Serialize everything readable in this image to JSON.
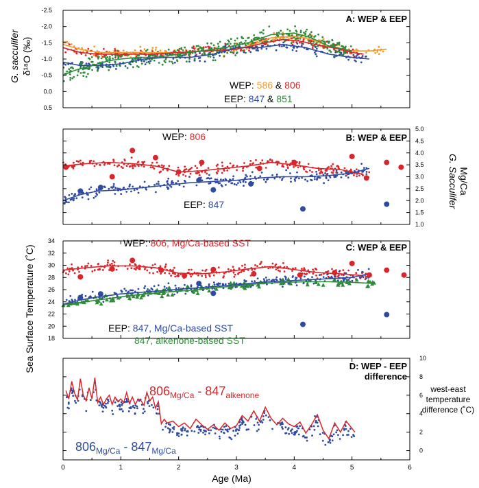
{
  "figure": {
    "shared_ylabel": "Sea Surface Temperature (˚C)",
    "xlabel": "Age (Ma)",
    "x_ticks": [
      "0",
      "1",
      "2",
      "3",
      "4",
      "5",
      "6"
    ]
  },
  "colors": {
    "wep_806": "#d8262b",
    "wep_586": "#f29a2e",
    "eep_847": "#2f4ba0",
    "eep_851": "#2e8b3a",
    "eep_847_alkenone": "#2e8b3a",
    "axis": "#000000"
  },
  "chart_data": [
    {
      "id": "A",
      "type": "scatter",
      "title": "A: WEP & EEP",
      "ylabel_line1": "G. sacculifer",
      "ylabel_line2": "δ¹⁸O (‰)",
      "ylim": [
        0.5,
        -2.5
      ],
      "y_reversed": true,
      "xlim": [
        0,
        6
      ],
      "y_ticks": [
        "-2.5",
        "-2.0",
        "-1.5",
        "-1.0",
        "-0.5",
        "0.0",
        "0.5"
      ],
      "legend": {
        "line1_prefix": "WEP: ",
        "line1_a": "586",
        "line1_amp": " & ",
        "line1_b": "806",
        "line2_prefix": "EEP: ",
        "line2_a": "847",
        "line2_amp": " & ",
        "line2_b": "851"
      },
      "series": [
        {
          "name": "586",
          "color": "#f29a2e",
          "smooth_x": [
            0,
            0.3,
            0.6,
            1.0,
            1.5,
            2.0,
            2.5,
            3.0,
            3.3,
            3.6,
            4.0,
            4.3,
            4.6,
            5.0,
            5.3,
            5.6
          ],
          "smooth_y": [
            -1.45,
            -1.3,
            -1.2,
            -1.2,
            -1.2,
            -1.2,
            -1.25,
            -1.3,
            -1.45,
            -1.65,
            -1.7,
            -1.6,
            -1.4,
            -1.25,
            -1.25,
            -1.3
          ]
        },
        {
          "name": "806",
          "color": "#d8262b",
          "smooth_x": [
            0,
            0.3,
            0.6,
            1.0,
            1.5,
            2.0,
            2.5,
            3.0,
            3.5,
            3.8,
            4.1,
            4.5,
            4.8,
            5.0,
            5.2
          ],
          "smooth_y": [
            -1.35,
            -1.2,
            -1.15,
            -1.15,
            -1.15,
            -1.2,
            -1.25,
            -1.3,
            -1.5,
            -1.6,
            -1.55,
            -1.4,
            -1.3,
            -1.2,
            -1.15
          ]
        },
        {
          "name": "847",
          "color": "#2f4ba0",
          "smooth_x": [
            0,
            0.3,
            0.6,
            1.0,
            1.4,
            1.8,
            2.2,
            2.6,
            3.0,
            3.4,
            3.8,
            4.2,
            4.6,
            5.0,
            5.3
          ],
          "smooth_y": [
            -0.9,
            -0.8,
            -0.8,
            -0.85,
            -1.0,
            -1.05,
            -1.05,
            -1.15,
            -1.35,
            -1.35,
            -1.45,
            -1.35,
            -1.15,
            -1.05,
            -1.0
          ]
        },
        {
          "name": "851",
          "color": "#2e8b3a",
          "smooth_x": [
            0,
            0.2,
            0.5,
            0.8,
            1.0,
            1.3,
            1.6,
            2.0,
            2.4,
            2.8,
            3.2,
            3.6,
            4.0,
            4.3,
            4.6,
            5.0
          ],
          "smooth_y": [
            -0.5,
            -0.65,
            -0.8,
            -0.95,
            -1.0,
            -1.05,
            -1.05,
            -1.15,
            -1.25,
            -1.35,
            -1.5,
            -1.75,
            -1.8,
            -1.65,
            -1.4,
            -1.25
          ]
        }
      ]
    },
    {
      "id": "B",
      "type": "scatter",
      "title": "B: WEP & EEP",
      "ylabel_line1": "G. Sacculifer",
      "ylabel_line2": "Mg/Ca",
      "ylim": [
        1.0,
        5.0
      ],
      "xlim": [
        0,
        6
      ],
      "y_ticks": [
        "5.0",
        "4.5",
        "4.0",
        "3.5",
        "3.0",
        "2.5",
        "2.0",
        "1.5",
        "1.0"
      ],
      "label_wep_prefix": "WEP: ",
      "label_wep_site": "806",
      "label_eep_prefix": "EEP: ",
      "label_eep_site": "847",
      "series": [
        {
          "name": "806",
          "color": "#d8262b",
          "smooth_x": [
            0,
            0.4,
            0.8,
            1.2,
            1.6,
            2.0,
            2.4,
            2.8,
            3.2,
            3.6,
            4.0,
            4.4,
            4.8,
            5.2
          ],
          "smooth_y": [
            3.45,
            3.55,
            3.6,
            3.55,
            3.45,
            3.2,
            3.25,
            3.35,
            3.45,
            3.6,
            3.5,
            3.35,
            3.3,
            3.1
          ],
          "big_x": [
            0.05,
            0.85,
            1.2,
            1.6,
            2.0,
            2.4,
            3.4,
            4.0,
            5.0,
            5.25,
            5.6,
            5.85
          ],
          "big_y": [
            3.4,
            3.0,
            4.1,
            3.8,
            3.2,
            3.6,
            3.35,
            3.6,
            3.85,
            2.95,
            3.6,
            3.4
          ]
        },
        {
          "name": "847",
          "color": "#2f4ba0",
          "smooth_x": [
            0,
            0.3,
            0.6,
            1.0,
            1.4,
            1.8,
            2.2,
            2.6,
            3.0,
            3.4,
            3.8,
            4.2,
            4.6,
            5.0,
            5.3
          ],
          "smooth_y": [
            2.0,
            2.25,
            2.4,
            2.45,
            2.55,
            2.65,
            2.75,
            2.8,
            2.85,
            2.95,
            3.0,
            3.0,
            3.05,
            3.15,
            3.35
          ],
          "big_x": [
            0.3,
            0.65,
            2.35,
            2.6,
            3.25,
            4.15,
            5.6
          ],
          "big_y": [
            2.4,
            2.55,
            2.85,
            2.45,
            2.7,
            1.65,
            1.85
          ]
        }
      ]
    },
    {
      "id": "C",
      "type": "scatter",
      "title": "C: WEP & EEP",
      "ylim": [
        18,
        34
      ],
      "xlim": [
        0,
        6
      ],
      "y_ticks": [
        "34",
        "32",
        "30",
        "28",
        "26",
        "24",
        "22",
        "20",
        "18"
      ],
      "label_wep_prefix": "WEP: ",
      "label_wep_text": "806,  Mg/Ca-based SST",
      "label_eep_prefix": "EEP: ",
      "label_eep_text": "847, Mg/Ca-based SST",
      "label_alk_text": "847, alkenone-based SST",
      "series": [
        {
          "name": "806, Mg/Ca-based SST",
          "color": "#d8262b",
          "smooth_x": [
            0,
            0.4,
            0.8,
            1.2,
            1.6,
            2.0,
            2.4,
            2.8,
            3.2,
            3.6,
            4.0,
            4.4,
            4.8,
            5.2
          ],
          "smooth_y": [
            29.2,
            29.6,
            29.9,
            29.9,
            29.6,
            28.7,
            28.6,
            28.9,
            29.4,
            29.8,
            29.3,
            28.8,
            28.6,
            28.3
          ],
          "big_x": [
            0.3,
            0.85,
            1.2,
            1.7,
            2.1,
            2.6,
            3.3,
            4.1,
            4.7,
            5.0,
            5.3,
            5.6,
            5.9
          ],
          "big_y": [
            28.1,
            29.4,
            30.8,
            29.2,
            28.3,
            29.3,
            28.6,
            28.4,
            28.8,
            30.3,
            28.4,
            29.2,
            28.4
          ]
        },
        {
          "name": "847, Mg/Ca-based SST",
          "color": "#2f4ba0",
          "smooth_x": [
            0,
            0.3,
            0.6,
            1.0,
            1.4,
            1.8,
            2.2,
            2.6,
            3.0,
            3.4,
            3.8,
            4.2,
            4.6,
            5.0,
            5.3
          ],
          "smooth_y": [
            23.6,
            24.3,
            24.8,
            25.3,
            25.6,
            25.9,
            26.2,
            26.5,
            26.8,
            27.2,
            27.4,
            27.6,
            27.8,
            28.0,
            28.6
          ],
          "big_x": [
            0.3,
            0.65,
            2.35,
            2.6,
            4.15,
            5.6
          ],
          "big_y": [
            24.7,
            25.3,
            27.0,
            25.4,
            20.3,
            21.9
          ]
        },
        {
          "name": "847, alkenone-based SST",
          "color": "#2e8b3a",
          "smooth_x": [
            0,
            0.3,
            0.6,
            1.0,
            1.4,
            1.8,
            2.2,
            2.6,
            3.0,
            3.4,
            3.8,
            4.2,
            4.6,
            5.0,
            5.4
          ],
          "smooth_y": [
            23.5,
            23.9,
            24.3,
            24.8,
            25.3,
            25.6,
            25.9,
            26.3,
            26.6,
            27.0,
            27.2,
            27.3,
            27.3,
            27.2,
            27.0
          ]
        }
      ]
    },
    {
      "id": "D",
      "type": "line",
      "title_line1": "D: WEP - EEP",
      "title_line2": "difference",
      "ylabel_line1": "west-east",
      "ylabel_line2": "temperature",
      "ylabel_line3": "difference (˚C)",
      "ylim": [
        -1,
        10
      ],
      "xlim": [
        0,
        6
      ],
      "y_ticks": [
        "10",
        "8",
        "6",
        "4",
        "2",
        "0"
      ],
      "label_red_main": "806",
      "label_red_sub1": "Mg/Ca",
      "label_red_dash": " - 847",
      "label_red_sub2": "alkenone",
      "label_blue_main": "806",
      "label_blue_sub1": "Mg/Ca",
      "label_blue_dash": " - 847",
      "label_blue_sub2": "Mg/Ca",
      "series": [
        {
          "name": "806Mg/Ca - 847alkenone",
          "color": "#d8262b",
          "x": [
            0.05,
            0.1,
            0.15,
            0.2,
            0.25,
            0.3,
            0.35,
            0.4,
            0.45,
            0.5,
            0.55,
            0.6,
            0.65,
            0.7,
            0.75,
            0.8,
            0.85,
            0.9,
            0.95,
            1.0,
            1.05,
            1.1,
            1.15,
            1.2,
            1.25,
            1.3,
            1.35,
            1.4,
            1.45,
            1.5,
            1.55,
            1.6,
            1.65,
            1.7,
            1.75,
            1.8,
            1.9,
            2.0,
            2.1,
            2.2,
            2.3,
            2.4,
            2.5,
            2.6,
            2.7,
            2.8,
            2.9,
            3.0,
            3.1,
            3.2,
            3.3,
            3.4,
            3.5,
            3.6,
            3.7,
            3.8,
            3.9,
            4.0,
            4.1,
            4.2,
            4.3,
            4.4,
            4.5,
            4.6,
            4.7,
            4.8,
            4.9,
            5.0,
            5.05
          ],
          "y": [
            6.5,
            5.6,
            7.5,
            6.2,
            5.5,
            7.8,
            6.0,
            5.4,
            6.8,
            5.6,
            7.9,
            5.2,
            5.8,
            5.0,
            5.6,
            6.0,
            5.0,
            5.8,
            5.3,
            5.6,
            5.2,
            6.3,
            5.1,
            5.8,
            5.0,
            5.6,
            5.4,
            4.9,
            6.3,
            5.4,
            5.8,
            4.6,
            5.3,
            2.9,
            3.4,
            3.0,
            3.2,
            2.6,
            3.0,
            2.4,
            3.4,
            2.8,
            2.3,
            2.8,
            2.2,
            3.0,
            2.4,
            2.7,
            3.8,
            3.2,
            4.3,
            3.2,
            4.7,
            3.5,
            2.8,
            3.5,
            2.9,
            2.6,
            3.1,
            1.9,
            2.8,
            3.9,
            2.2,
            1.3,
            3.0,
            2.0,
            3.2,
            2.4,
            2.0
          ]
        }
      ]
    }
  ]
}
